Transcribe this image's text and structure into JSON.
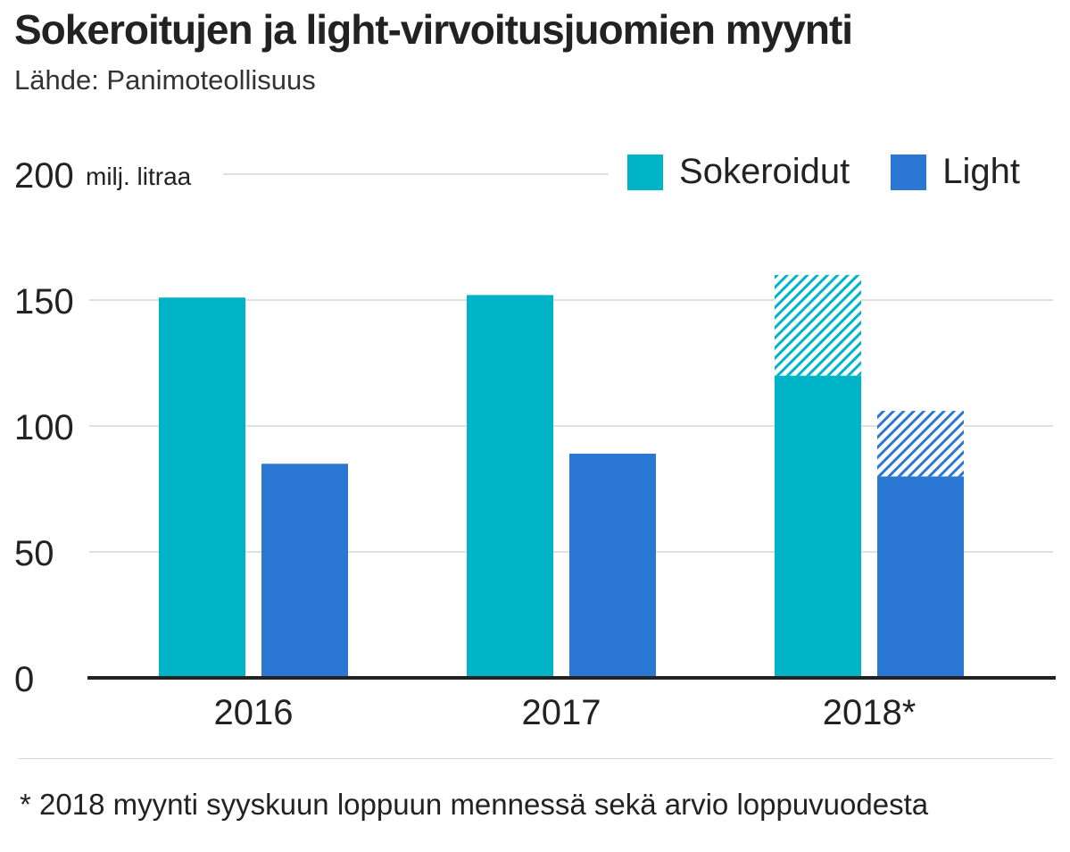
{
  "chart_data": {
    "type": "bar",
    "title": "Sokeroitujen ja light-virvoitusjuomien myynti",
    "subtitle": "Lähde: Panimoteollisuus",
    "ylabel": "milj. litraa",
    "ylim": [
      0,
      200
    ],
    "yticks": [
      "0",
      "50",
      "100",
      "150",
      "200"
    ],
    "categories": [
      "2016",
      "2017",
      "2018*"
    ],
    "series": [
      {
        "name": "Sokeroidut",
        "color": "#00b4c8",
        "values": [
          151,
          152,
          120
        ],
        "estimate": [
          0,
          0,
          40
        ]
      },
      {
        "name": "Light",
        "color": "#2b77d4",
        "values": [
          85,
          89,
          80
        ],
        "estimate": [
          0,
          0,
          26
        ]
      }
    ],
    "footnote": "* 2018 myynti syyskuun loppuun mennessä sekä arvio loppuvuodesta"
  }
}
